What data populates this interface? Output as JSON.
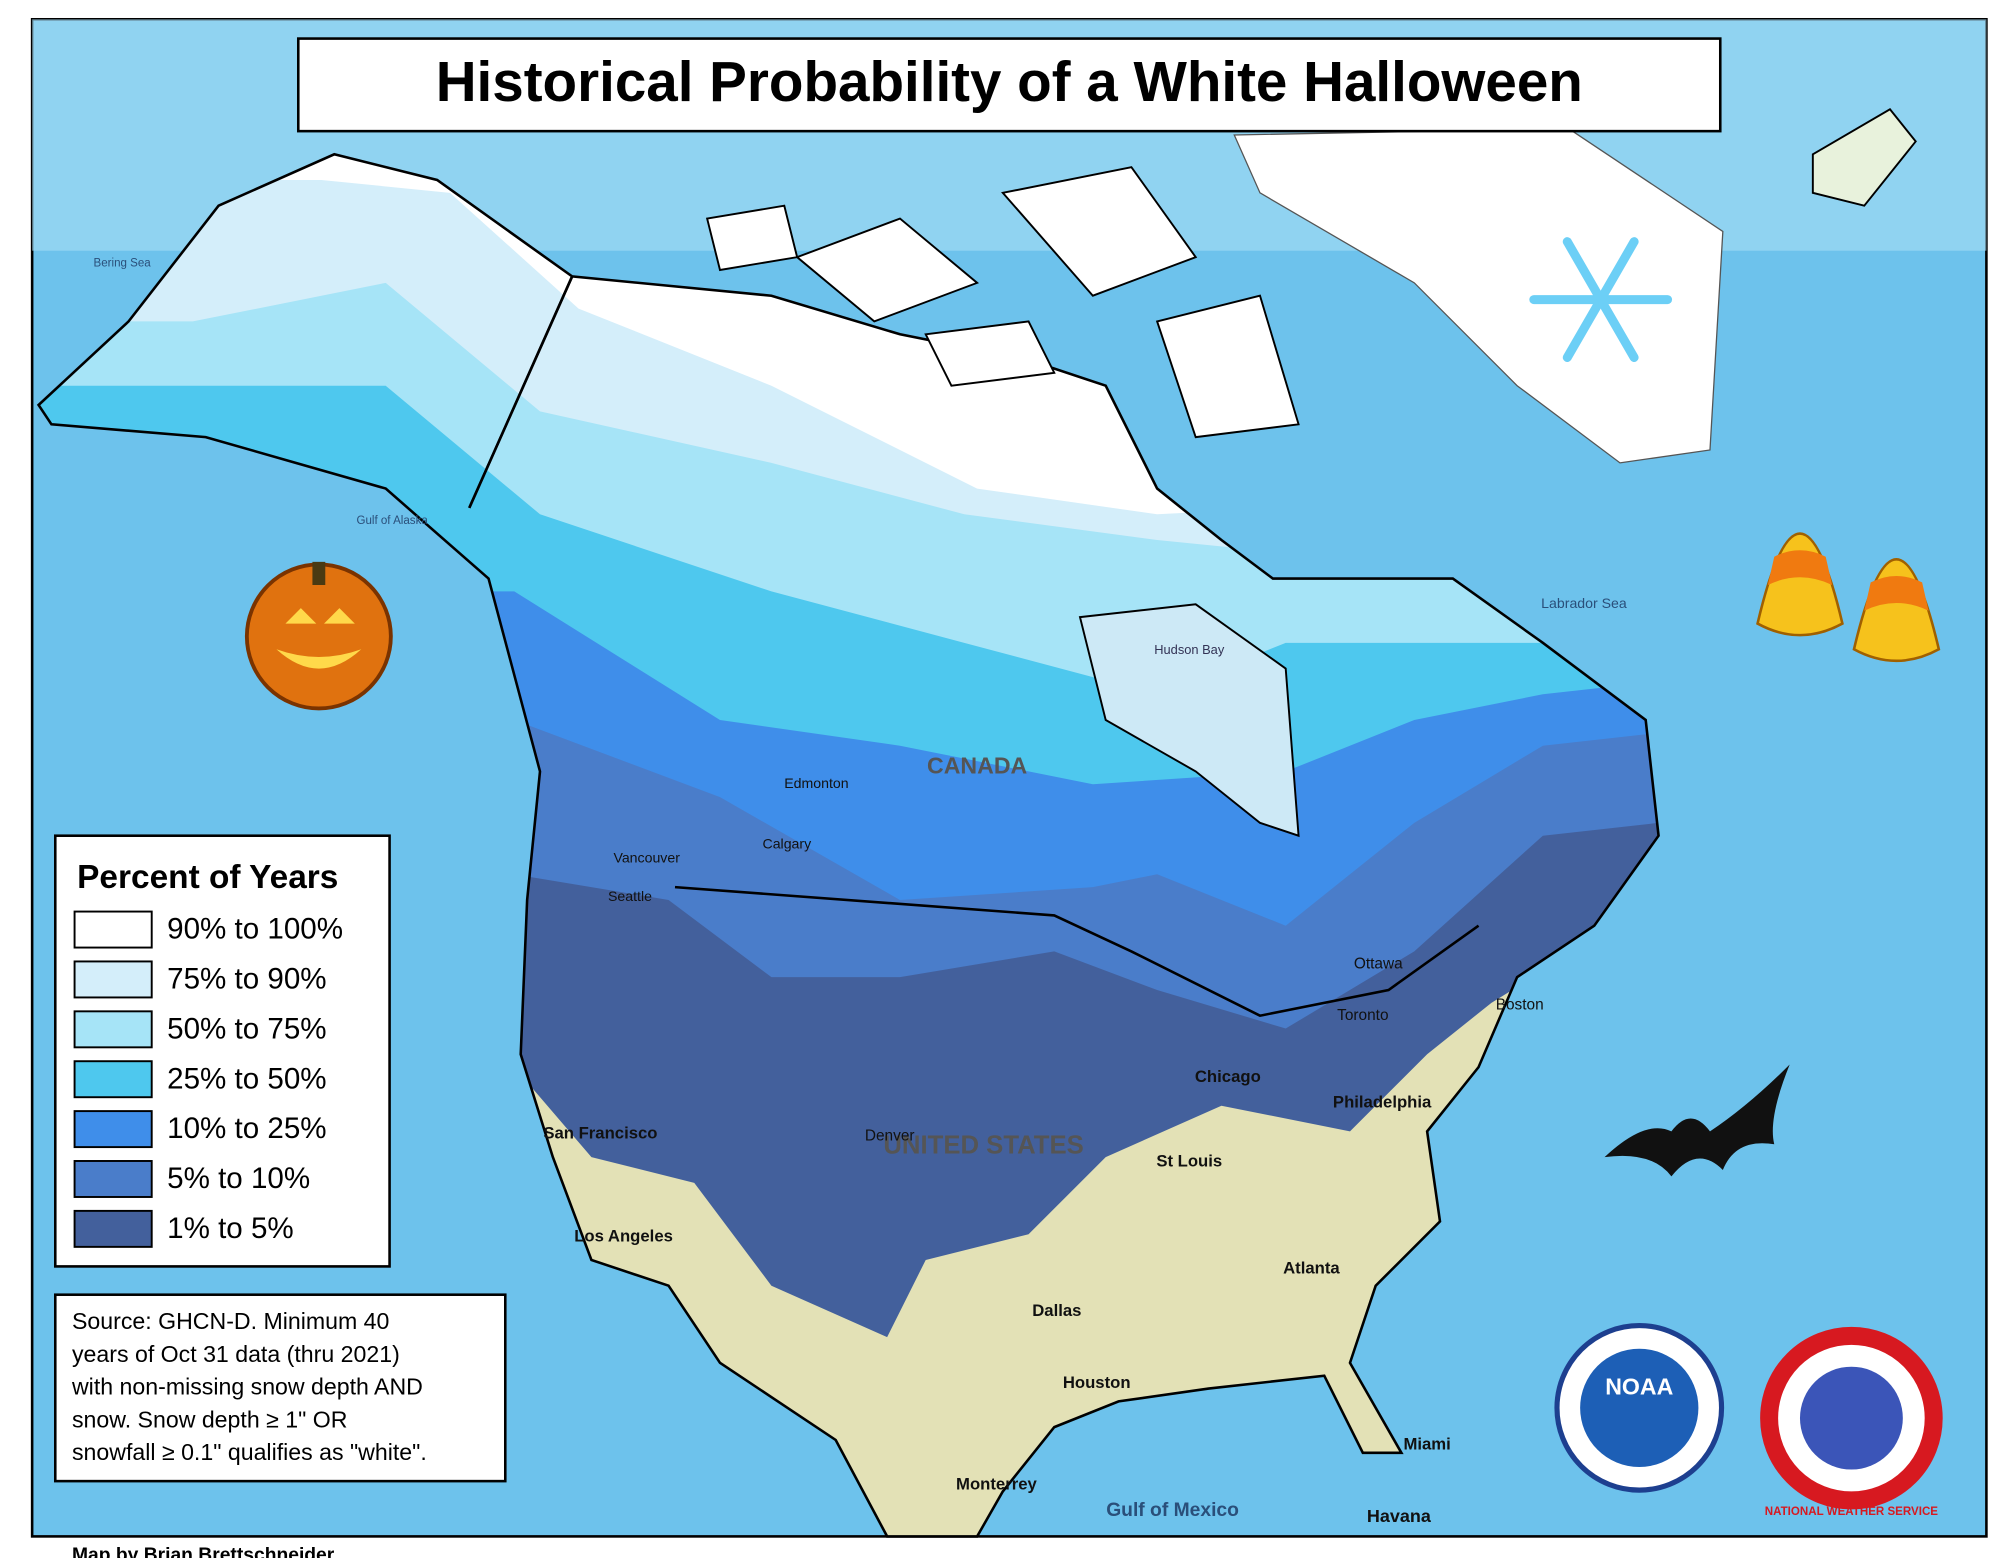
{
  "title": "Historical Probability of a White Halloween",
  "legend": {
    "title": "Percent of Years",
    "items": [
      {
        "label": "90% to 100%",
        "color": "#ffffff"
      },
      {
        "label": "75% to 90%",
        "color": "#d4eefa"
      },
      {
        "label": "50% to 75%",
        "color": "#a6e4f7"
      },
      {
        "label": "25% to 50%",
        "color": "#4ec8ee"
      },
      {
        "label": "10% to 25%",
        "color": "#3f8eea"
      },
      {
        "label": "5% to 10%",
        "color": "#4a7dca"
      },
      {
        "label": "1% to 5%",
        "color": "#43609c"
      }
    ]
  },
  "source_lines": [
    "Source: GHCN-D. Minimum 40",
    "years of Oct 31 data (thru 2021)",
    "with non-missing snow depth AND",
    "snow. Snow depth ≥ 1\" OR",
    "snowfall ≥ 0.1\" qualifies as \"white\"."
  ],
  "credit": "Map by Brian Brettschneider",
  "map_labels": [
    "CANADA",
    "UNITED STATES",
    "Hudson Bay",
    "Vancouver",
    "Seattle",
    "Edmonton",
    "Calgary",
    "Denver",
    "Chicago",
    "St Louis",
    "Toronto",
    "Ottawa",
    "Boston",
    "Philadelphia",
    "San Francisco",
    "Los Angeles",
    "Dallas",
    "Houston",
    "Atlanta",
    "Miami",
    "Monterrey",
    "Havana",
    "Gulf of Mexico",
    "Labrador Sea",
    "Gulf of Alaska",
    "Bering Sea"
  ],
  "logos": {
    "noaa": "NOAA",
    "nws": "NATIONAL WEATHER SERVICE"
  }
}
